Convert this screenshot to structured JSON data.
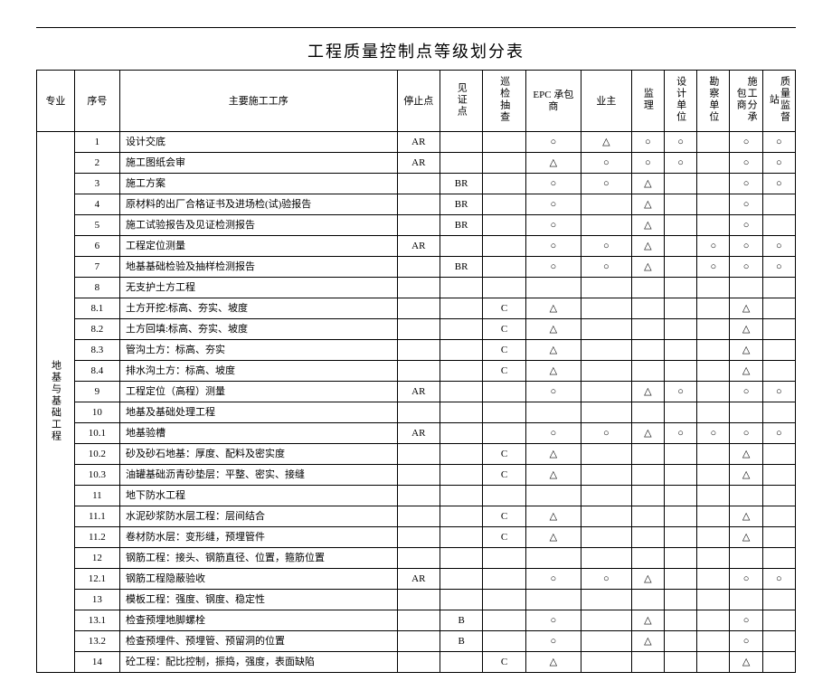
{
  "title": "工程质量控制点等级划分表",
  "headers": {
    "zhuanye": "专业",
    "xuhao": "序号",
    "gongxu": "主要施工工序",
    "stop": "停止点",
    "witness": "见证点",
    "patrol": "巡检抽查",
    "epc": "EPC 承包商",
    "yezhu": "业主",
    "jianli": "监理",
    "sheji": "设计单位",
    "kancha": "勘察单位",
    "fenbao": "施工分承包商",
    "jiandu": "质量监督站"
  },
  "symbols": {
    "circle": "○",
    "triangle": "△"
  },
  "rowgroup_label": "地基与基础工程",
  "rows": [
    {
      "no": "1",
      "name": "设计交底",
      "stop": "AR",
      "wit": "",
      "patrol": "",
      "epc": "○",
      "yz": "△",
      "jl": "○",
      "sj": "○",
      "kc": "",
      "fb": "○",
      "jd": "○"
    },
    {
      "no": "2",
      "name": "施工图纸会审",
      "stop": "AR",
      "wit": "",
      "patrol": "",
      "epc": "△",
      "yz": "○",
      "jl": "○",
      "sj": "○",
      "kc": "",
      "fb": "○",
      "jd": "○"
    },
    {
      "no": "3",
      "name": "施工方案",
      "stop": "",
      "wit": "BR",
      "patrol": "",
      "epc": "○",
      "yz": "○",
      "jl": "△",
      "sj": "",
      "kc": "",
      "fb": "○",
      "jd": "○"
    },
    {
      "no": "4",
      "name": "原材料的出厂合格证书及进场检(试)验报告",
      "stop": "",
      "wit": "BR",
      "patrol": "",
      "epc": "○",
      "yz": "",
      "jl": "△",
      "sj": "",
      "kc": "",
      "fb": "○",
      "jd": ""
    },
    {
      "no": "5",
      "name": "施工试验报告及见证检测报告",
      "stop": "",
      "wit": "BR",
      "patrol": "",
      "epc": "○",
      "yz": "",
      "jl": "△",
      "sj": "",
      "kc": "",
      "fb": "○",
      "jd": ""
    },
    {
      "no": "6",
      "name": "工程定位测量",
      "stop": "AR",
      "wit": "",
      "patrol": "",
      "epc": "○",
      "yz": "○",
      "jl": "△",
      "sj": "",
      "kc": "○",
      "fb": "○",
      "jd": "○"
    },
    {
      "no": "7",
      "name": "地基基础检验及抽样检测报告",
      "stop": "",
      "wit": "BR",
      "patrol": "",
      "epc": "○",
      "yz": "○",
      "jl": "△",
      "sj": "",
      "kc": "○",
      "fb": "○",
      "jd": "○"
    },
    {
      "no": "8",
      "name": "无支护土方工程",
      "stop": "",
      "wit": "",
      "patrol": "",
      "epc": "",
      "yz": "",
      "jl": "",
      "sj": "",
      "kc": "",
      "fb": "",
      "jd": ""
    },
    {
      "no": "8.1",
      "name": "土方开挖:标高、夯实、坡度",
      "stop": "",
      "wit": "",
      "patrol": "C",
      "epc": "△",
      "yz": "",
      "jl": "",
      "sj": "",
      "kc": "",
      "fb": "△",
      "jd": ""
    },
    {
      "no": "8.2",
      "name": "土方回填:标高、夯实、坡度",
      "stop": "",
      "wit": "",
      "patrol": "C",
      "epc": "△",
      "yz": "",
      "jl": "",
      "sj": "",
      "kc": "",
      "fb": "△",
      "jd": ""
    },
    {
      "no": "8.3",
      "name": "管沟土方：标高、夯实",
      "stop": "",
      "wit": "",
      "patrol": "C",
      "epc": "△",
      "yz": "",
      "jl": "",
      "sj": "",
      "kc": "",
      "fb": "△",
      "jd": ""
    },
    {
      "no": "8.4",
      "name": "排水沟土方：标高、坡度",
      "stop": "",
      "wit": "",
      "patrol": "C",
      "epc": "△",
      "yz": "",
      "jl": "",
      "sj": "",
      "kc": "",
      "fb": "△",
      "jd": ""
    },
    {
      "no": "9",
      "name": "工程定位（高程）测量",
      "stop": "AR",
      "wit": "",
      "patrol": "",
      "epc": "○",
      "yz": "",
      "jl": "△",
      "sj": "○",
      "kc": "",
      "fb": "○",
      "jd": "○"
    },
    {
      "no": "10",
      "name": "地基及基础处理工程",
      "stop": "",
      "wit": "",
      "patrol": "",
      "epc": "",
      "yz": "",
      "jl": "",
      "sj": "",
      "kc": "",
      "fb": "",
      "jd": ""
    },
    {
      "no": "10.1",
      "name": "地基验槽",
      "stop": "AR",
      "wit": "",
      "patrol": "",
      "epc": "○",
      "yz": "○",
      "jl": "△",
      "sj": "○",
      "kc": "○",
      "fb": "○",
      "jd": "○"
    },
    {
      "no": "10.2",
      "name": "砂及砂石地基：厚度、配料及密实度",
      "stop": "",
      "wit": "",
      "patrol": "C",
      "epc": "△",
      "yz": "",
      "jl": "",
      "sj": "",
      "kc": "",
      "fb": "△",
      "jd": ""
    },
    {
      "no": "10.3",
      "name": "油罐基础沥青砂垫层：平整、密实、接缝",
      "stop": "",
      "wit": "",
      "patrol": "C",
      "epc": "△",
      "yz": "",
      "jl": "",
      "sj": "",
      "kc": "",
      "fb": "△",
      "jd": ""
    },
    {
      "no": "11",
      "name": "地下防水工程",
      "stop": "",
      "wit": "",
      "patrol": "",
      "epc": "",
      "yz": "",
      "jl": "",
      "sj": "",
      "kc": "",
      "fb": "",
      "jd": ""
    },
    {
      "no": "11.1",
      "name": "水泥砂浆防水层工程：层间结合",
      "stop": "",
      "wit": "",
      "patrol": "C",
      "epc": "△",
      "yz": "",
      "jl": "",
      "sj": "",
      "kc": "",
      "fb": "△",
      "jd": ""
    },
    {
      "no": "11.2",
      "name": "卷材防水层：变形缝，预埋管件",
      "stop": "",
      "wit": "",
      "patrol": "C",
      "epc": "△",
      "yz": "",
      "jl": "",
      "sj": "",
      "kc": "",
      "fb": "△",
      "jd": ""
    },
    {
      "no": "12",
      "name": "钢筋工程：接头、钢筋直径、位置，箍筋位置",
      "stop": "",
      "wit": "",
      "patrol": "",
      "epc": "",
      "yz": "",
      "jl": "",
      "sj": "",
      "kc": "",
      "fb": "",
      "jd": ""
    },
    {
      "no": "12.1",
      "name": "钢筋工程隐蔽验收",
      "stop": "AR",
      "wit": "",
      "patrol": "",
      "epc": "○",
      "yz": "○",
      "jl": "△",
      "sj": "",
      "kc": "",
      "fb": "○",
      "jd": "○"
    },
    {
      "no": "13",
      "name": "模板工程：强度、钢度、稳定性",
      "stop": "",
      "wit": "",
      "patrol": "",
      "epc": "",
      "yz": "",
      "jl": "",
      "sj": "",
      "kc": "",
      "fb": "",
      "jd": ""
    },
    {
      "no": "13.1",
      "name": "检查预埋地脚螺栓",
      "stop": "",
      "wit": "B",
      "patrol": "",
      "epc": "○",
      "yz": "",
      "jl": "△",
      "sj": "",
      "kc": "",
      "fb": "○",
      "jd": ""
    },
    {
      "no": "13.2",
      "name": "检查预埋件、预埋管、预留洞的位置",
      "stop": "",
      "wit": "B",
      "patrol": "",
      "epc": "○",
      "yz": "",
      "jl": "△",
      "sj": "",
      "kc": "",
      "fb": "○",
      "jd": ""
    },
    {
      "no": "14",
      "name": "砼工程：配比控制，振捣，强度，表面缺陷",
      "stop": "",
      "wit": "",
      "patrol": "C",
      "epc": "△",
      "yz": "",
      "jl": "",
      "sj": "",
      "kc": "",
      "fb": "△",
      "jd": ""
    }
  ]
}
